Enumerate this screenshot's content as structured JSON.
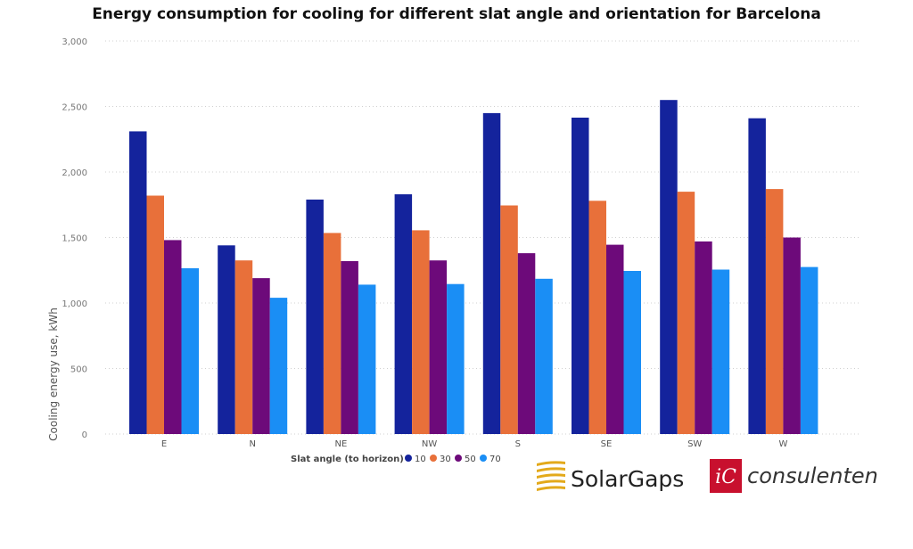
{
  "title": "Energy consumption for cooling for different slat angle and orientation for Barcelona",
  "chart_data": {
    "type": "bar",
    "title": "Energy consumption for cooling for different slat angle and orientation for Barcelona",
    "xlabel": "",
    "ylabel": "Cooling energy use, kWh",
    "ylim": [
      0,
      3000
    ],
    "yticks": [
      0,
      500,
      1000,
      1500,
      2000,
      2500,
      3000
    ],
    "ytick_labels": [
      "0",
      "500",
      "1,000",
      "1,500",
      "2,000",
      "2,500",
      "3,000"
    ],
    "categories": [
      "E",
      "N",
      "NE",
      "NW",
      "S",
      "SE",
      "SW",
      "W"
    ],
    "grid": "horizontal dotted",
    "legend": {
      "title": "Slat angle (to horizon)",
      "placement": "bottom-center"
    },
    "series": [
      {
        "name": "10",
        "color": "#14239c",
        "values": [
          2310,
          1440,
          1790,
          1830,
          2450,
          2415,
          2550,
          2410
        ]
      },
      {
        "name": "30",
        "color": "#e8703a",
        "values": [
          1820,
          1325,
          1535,
          1555,
          1745,
          1780,
          1850,
          1870
        ]
      },
      {
        "name": "50",
        "color": "#6d0a7a",
        "values": [
          1480,
          1190,
          1320,
          1325,
          1380,
          1445,
          1470,
          1500
        ]
      },
      {
        "name": "70",
        "color": "#1a8ef5",
        "values": [
          1265,
          1040,
          1140,
          1145,
          1185,
          1245,
          1255,
          1275
        ]
      }
    ]
  },
  "logos": {
    "solargaps": "SolarGaps",
    "ic": "iC",
    "consulenten": "consulenten"
  },
  "colors": {
    "solargaps_gold": "#e3a91a",
    "ic_red": "#c8102e"
  }
}
